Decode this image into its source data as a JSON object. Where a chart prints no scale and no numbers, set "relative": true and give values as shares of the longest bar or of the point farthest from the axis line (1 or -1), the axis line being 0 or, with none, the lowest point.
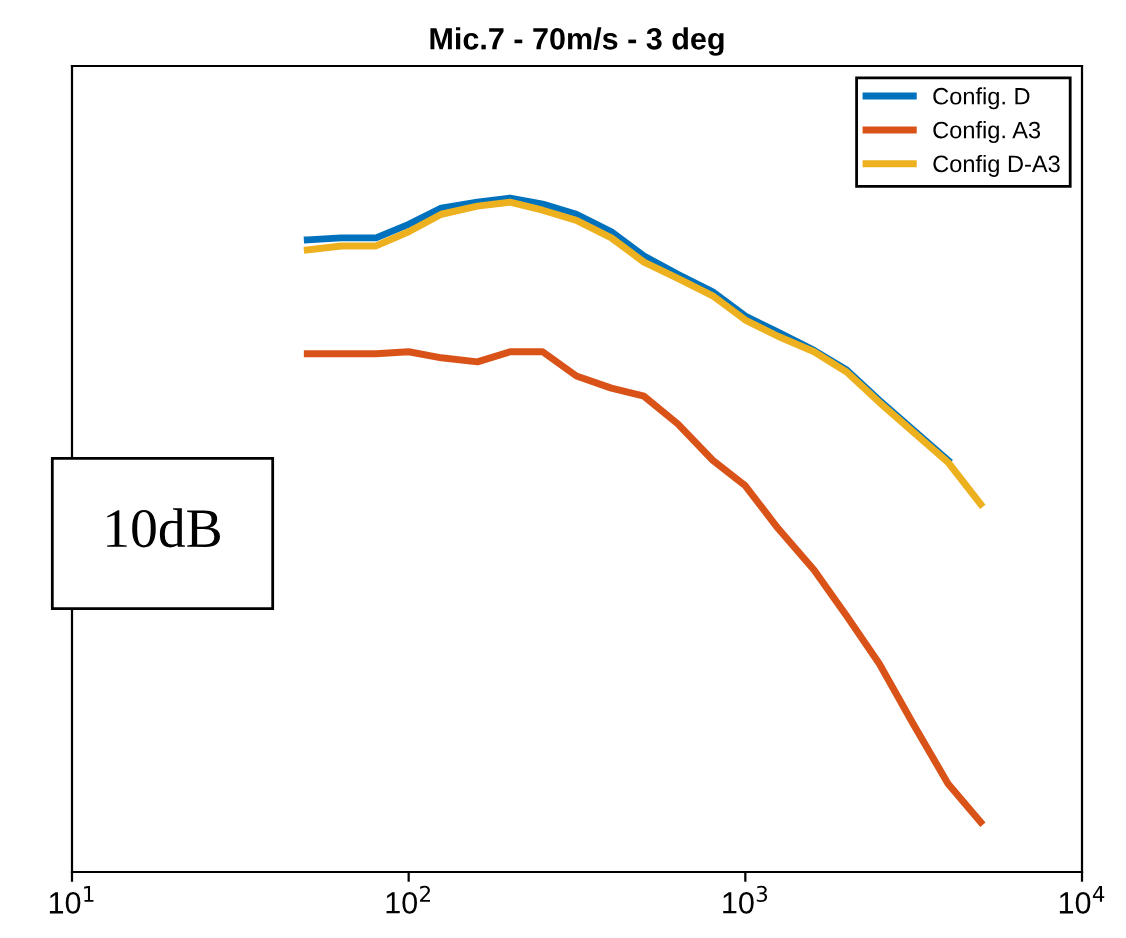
{
  "chart_data": {
    "type": "line",
    "title": "Mic.7 - 70m/s - 3 deg",
    "relative": true,
    "log": "x",
    "xlim": [
      10,
      10000
    ],
    "xticks": [
      {
        "value": 10,
        "label": "10$^{1}$"
      },
      {
        "value": 100,
        "label": "10$^{2}$"
      },
      {
        "value": 1000,
        "label": "10$^{3}$"
      },
      {
        "value": 10000,
        "label": "10$^{4}$"
      }
    ],
    "x": [
      50,
      63,
      80,
      100,
      125,
      160,
      200,
      250,
      315,
      400,
      500,
      630,
      800,
      1000,
      1250,
      1600,
      2000,
      2500,
      3150,
      4000,
      5000
    ],
    "series": [
      {
        "name": "Config. D",
        "color": "#0072bd",
        "values": [
          0.938,
          0.941,
          0.941,
          0.961,
          0.985,
          0.994,
          1,
          0.991,
          0.976,
          0.95,
          0.914,
          0.887,
          0.861,
          0.825,
          0.801,
          0.774,
          0.745,
          0.7,
          0.656,
          0.611,
          null
        ]
      },
      {
        "name": "Config. A3",
        "color": "#d95319",
        "values": [
          0.769,
          0.769,
          0.769,
          0.772,
          0.763,
          0.757,
          0.772,
          0.772,
          0.736,
          0.718,
          0.706,
          0.665,
          0.611,
          0.573,
          0.51,
          0.448,
          0.38,
          0.309,
          0.22,
          0.131,
          0.074
        ]
      },
      {
        "name": "Config D-A3",
        "color": "#edb120",
        "values": [
          0.923,
          0.929,
          0.929,
          0.95,
          0.976,
          0.988,
          0.994,
          0.982,
          0.967,
          0.941,
          0.905,
          0.881,
          0.855,
          0.819,
          0.795,
          0.772,
          0.742,
          0.697,
          0.653,
          0.608,
          0.546
        ]
      }
    ],
    "legend": "top right",
    "grid": false,
    "annotations": [
      "10dB"
    ]
  }
}
